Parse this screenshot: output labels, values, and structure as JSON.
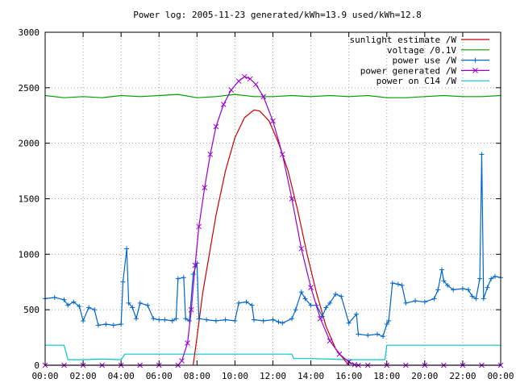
{
  "chart_data": {
    "type": "line",
    "title": "Power log: 2005-11-23 generated/kWh=13.9 used/kWh=12.8",
    "xlabel": "",
    "ylabel": "",
    "xlim": [
      0,
      24
    ],
    "ylim": [
      0,
      3000
    ],
    "x_ticks": [
      "00:00",
      "02:00",
      "04:00",
      "06:00",
      "08:00",
      "10:00",
      "12:00",
      "14:00",
      "16:00",
      "18:00",
      "20:00",
      "22:00",
      "00:00"
    ],
    "y_ticks": [
      "0",
      "500",
      "1000",
      "1500",
      "2000",
      "2500",
      "3000"
    ],
    "grid": true,
    "legend_position": "top-right",
    "series": [
      {
        "name": "sunlight estimate /W",
        "style": "line",
        "color": "#cc0000",
        "points": [
          [
            7.8,
            0
          ],
          [
            8.0,
            250
          ],
          [
            8.3,
            650
          ],
          [
            8.7,
            1050
          ],
          [
            9.0,
            1350
          ],
          [
            9.5,
            1750
          ],
          [
            10.0,
            2050
          ],
          [
            10.5,
            2230
          ],
          [
            11.0,
            2300
          ],
          [
            11.3,
            2290
          ],
          [
            11.8,
            2200
          ],
          [
            12.3,
            2000
          ],
          [
            12.8,
            1750
          ],
          [
            13.3,
            1400
          ],
          [
            13.8,
            1000
          ],
          [
            14.3,
            650
          ],
          [
            14.8,
            350
          ],
          [
            15.3,
            150
          ],
          [
            15.8,
            40
          ],
          [
            16.0,
            0
          ]
        ]
      },
      {
        "name": "voltage /0.1V",
        "style": "line",
        "color": "#00a000",
        "points": [
          [
            0,
            2430
          ],
          [
            1,
            2410
          ],
          [
            2,
            2420
          ],
          [
            3,
            2410
          ],
          [
            4,
            2430
          ],
          [
            5,
            2420
          ],
          [
            6,
            2430
          ],
          [
            7,
            2440
          ],
          [
            8,
            2410
          ],
          [
            9,
            2420
          ],
          [
            10,
            2440
          ],
          [
            11,
            2420
          ],
          [
            12,
            2420
          ],
          [
            13,
            2430
          ],
          [
            14,
            2420
          ],
          [
            15,
            2430
          ],
          [
            16,
            2420
          ],
          [
            17,
            2430
          ],
          [
            18,
            2410
          ],
          [
            19,
            2410
          ],
          [
            20,
            2420
          ],
          [
            21,
            2430
          ],
          [
            22,
            2420
          ],
          [
            23,
            2420
          ],
          [
            24,
            2430
          ]
        ]
      },
      {
        "name": "power use /W",
        "style": "linespoints",
        "marker": "plus",
        "color": "#0066cc",
        "points": [
          [
            0,
            600
          ],
          [
            0.5,
            610
          ],
          [
            1,
            590
          ],
          [
            1.2,
            540
          ],
          [
            1.5,
            570
          ],
          [
            1.8,
            530
          ],
          [
            2.0,
            400
          ],
          [
            2.3,
            520
          ],
          [
            2.6,
            500
          ],
          [
            2.8,
            360
          ],
          [
            3.2,
            370
          ],
          [
            3.6,
            360
          ],
          [
            4.0,
            370
          ],
          [
            4.1,
            750
          ],
          [
            4.3,
            1050
          ],
          [
            4.4,
            560
          ],
          [
            4.6,
            520
          ],
          [
            4.8,
            420
          ],
          [
            5.0,
            560
          ],
          [
            5.4,
            540
          ],
          [
            5.7,
            420
          ],
          [
            6.0,
            410
          ],
          [
            6.3,
            410
          ],
          [
            6.7,
            400
          ],
          [
            6.9,
            420
          ],
          [
            7.0,
            780
          ],
          [
            7.3,
            790
          ],
          [
            7.4,
            420
          ],
          [
            7.6,
            400
          ],
          [
            7.8,
            820
          ],
          [
            8.0,
            920
          ],
          [
            8.1,
            420
          ],
          [
            8.5,
            410
          ],
          [
            9.0,
            400
          ],
          [
            9.5,
            410
          ],
          [
            10.0,
            400
          ],
          [
            10.2,
            560
          ],
          [
            10.6,
            570
          ],
          [
            10.9,
            540
          ],
          [
            11.0,
            410
          ],
          [
            11.5,
            400
          ],
          [
            12.0,
            410
          ],
          [
            12.3,
            390
          ],
          [
            12.5,
            380
          ],
          [
            13.0,
            420
          ],
          [
            13.2,
            500
          ],
          [
            13.5,
            660
          ],
          [
            13.7,
            600
          ],
          [
            14.0,
            540
          ],
          [
            14.3,
            540
          ],
          [
            14.6,
            440
          ],
          [
            14.8,
            520
          ],
          [
            15.0,
            560
          ],
          [
            15.3,
            640
          ],
          [
            15.6,
            620
          ],
          [
            16.0,
            380
          ],
          [
            16.4,
            460
          ],
          [
            16.5,
            280
          ],
          [
            17.0,
            270
          ],
          [
            17.5,
            280
          ],
          [
            17.8,
            260
          ],
          [
            18.0,
            370
          ],
          [
            18.1,
            400
          ],
          [
            18.3,
            740
          ],
          [
            18.6,
            730
          ],
          [
            18.8,
            720
          ],
          [
            19.0,
            560
          ],
          [
            19.5,
            580
          ],
          [
            20.0,
            570
          ],
          [
            20.5,
            600
          ],
          [
            20.7,
            680
          ],
          [
            20.9,
            860
          ],
          [
            21.0,
            760
          ],
          [
            21.2,
            720
          ],
          [
            21.5,
            680
          ],
          [
            22.0,
            690
          ],
          [
            22.3,
            680
          ],
          [
            22.5,
            620
          ],
          [
            22.7,
            600
          ],
          [
            22.9,
            780
          ],
          [
            23.0,
            1900
          ],
          [
            23.1,
            600
          ],
          [
            23.3,
            700
          ],
          [
            23.5,
            780
          ],
          [
            23.7,
            800
          ],
          [
            24,
            790
          ]
        ]
      },
      {
        "name": "power generated /W",
        "style": "linespoints",
        "marker": "cross",
        "color": "#9900cc",
        "points": [
          [
            0,
            0
          ],
          [
            1,
            0
          ],
          [
            2,
            0
          ],
          [
            3,
            0
          ],
          [
            4,
            0
          ],
          [
            5,
            0
          ],
          [
            6,
            0
          ],
          [
            7,
            0
          ],
          [
            7.2,
            40
          ],
          [
            7.5,
            200
          ],
          [
            7.7,
            500
          ],
          [
            7.9,
            900
          ],
          [
            8.1,
            1250
          ],
          [
            8.4,
            1600
          ],
          [
            8.7,
            1900
          ],
          [
            9.0,
            2150
          ],
          [
            9.4,
            2350
          ],
          [
            9.8,
            2480
          ],
          [
            10.2,
            2560
          ],
          [
            10.5,
            2600
          ],
          [
            10.8,
            2580
          ],
          [
            11.1,
            2530
          ],
          [
            11.5,
            2420
          ],
          [
            12.0,
            2200
          ],
          [
            12.5,
            1900
          ],
          [
            13.0,
            1500
          ],
          [
            13.5,
            1050
          ],
          [
            14.0,
            700
          ],
          [
            14.5,
            420
          ],
          [
            15.0,
            220
          ],
          [
            15.5,
            100
          ],
          [
            16.0,
            30
          ],
          [
            16.3,
            5
          ],
          [
            16.5,
            0
          ],
          [
            17,
            0
          ],
          [
            18,
            0
          ],
          [
            19,
            0
          ],
          [
            20,
            0
          ],
          [
            21,
            0
          ],
          [
            22,
            0
          ],
          [
            23,
            0
          ],
          [
            24,
            0
          ]
        ]
      },
      {
        "name": "power on C14 /W",
        "style": "line",
        "color": "#00c8c8",
        "points": [
          [
            0,
            180
          ],
          [
            1.0,
            180
          ],
          [
            1.2,
            50
          ],
          [
            2.0,
            50
          ],
          [
            3.0,
            55
          ],
          [
            4.0,
            50
          ],
          [
            4.2,
            100
          ],
          [
            5.0,
            100
          ],
          [
            6.0,
            100
          ],
          [
            7.0,
            100
          ],
          [
            8.0,
            100
          ],
          [
            9.0,
            100
          ],
          [
            10.0,
            100
          ],
          [
            11.0,
            100
          ],
          [
            12.0,
            100
          ],
          [
            13.0,
            100
          ],
          [
            13.1,
            60
          ],
          [
            14.0,
            60
          ],
          [
            15.0,
            55
          ],
          [
            16.0,
            50
          ],
          [
            17.0,
            50
          ],
          [
            17.9,
            50
          ],
          [
            18.0,
            180
          ],
          [
            19.0,
            180
          ],
          [
            20.0,
            180
          ],
          [
            21.0,
            180
          ],
          [
            22.0,
            180
          ],
          [
            23.0,
            180
          ],
          [
            24.0,
            180
          ]
        ]
      }
    ]
  }
}
